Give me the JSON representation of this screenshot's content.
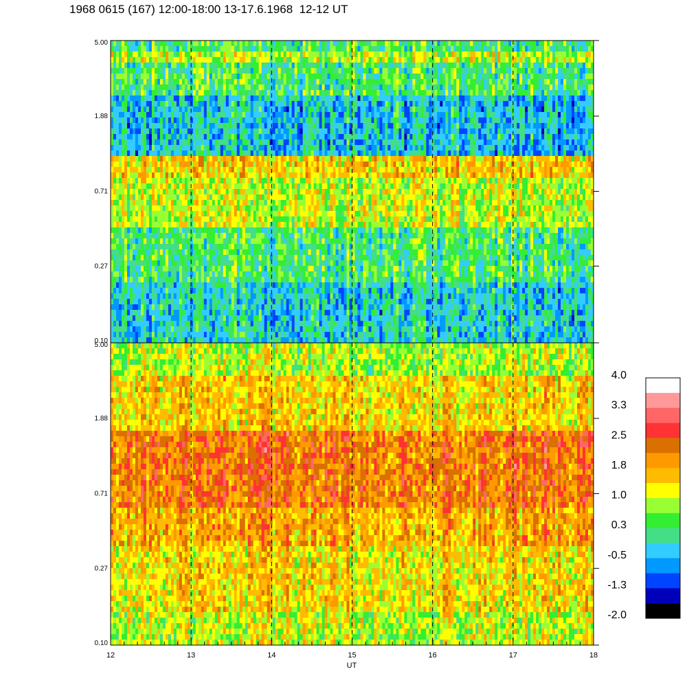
{
  "title": "1968 0615 (167) 12:00-18:00 13-17.6.1968  12-12 UT",
  "chart_data": {
    "type": "heatmap",
    "x": {
      "label": "UT",
      "range": [
        12,
        18
      ],
      "ticks": [
        "12",
        "13",
        "14",
        "15",
        "16",
        "17",
        "18"
      ],
      "dashed_gridlines_at": [
        13,
        14,
        15,
        16,
        17
      ]
    },
    "panels": [
      {
        "id": "top",
        "y": {
          "scale": "log",
          "range": [
            0.1,
            5.0
          ],
          "ticks": [
            "0.10",
            "0.27",
            "0.71",
            "1.88",
            "5.00"
          ]
        },
        "bands": [
          {
            "y": [
              3.85,
              4.3
            ],
            "level": 1.0
          },
          {
            "y": [
              2.4,
              5.0
            ],
            "level": 0.3
          },
          {
            "y": [
              1.15,
              2.4
            ],
            "level": -0.3
          },
          {
            "y": [
              0.85,
              1.15
            ],
            "level": 1.5
          },
          {
            "y": [
              0.45,
              0.85
            ],
            "level": 1.0
          },
          {
            "y": [
              0.22,
              0.45
            ],
            "level": 0.3
          },
          {
            "y": [
              0.1,
              0.22
            ],
            "level": -0.2
          }
        ]
      },
      {
        "id": "bottom",
        "y": {
          "scale": "log",
          "range": [
            0.1,
            5.0
          ],
          "ticks": [
            "0.10",
            "0.27",
            "0.71",
            "1.88",
            "5.00"
          ]
        },
        "bands": [
          {
            "y": [
              3.2,
              5.0
            ],
            "level": 0.9
          },
          {
            "y": [
              1.6,
              3.2
            ],
            "level": 1.5
          },
          {
            "y": [
              0.6,
              1.6
            ],
            "level": 2.2
          },
          {
            "y": [
              0.35,
              0.6
            ],
            "level": 1.8
          },
          {
            "y": [
              0.15,
              0.35
            ],
            "level": 1.4
          },
          {
            "y": [
              0.1,
              0.15
            ],
            "level": 1.0
          }
        ]
      }
    ],
    "colorbar": {
      "range": [
        -2.0,
        4.0
      ],
      "tick_labels": [
        "4.0",
        "3.3",
        "2.5",
        "1.8",
        "1.0",
        "0.3",
        "-0.5",
        "-1.3",
        "-2.0"
      ],
      "colors": [
        "#ffffff",
        "#ff9999",
        "#ff6666",
        "#ff3333",
        "#d97000",
        "#ff9900",
        "#ffbb00",
        "#ffff00",
        "#99ff33",
        "#33ee33",
        "#44dd88",
        "#33ccff",
        "#0099ff",
        "#0044ff",
        "#0000bb",
        "#000000"
      ]
    }
  }
}
